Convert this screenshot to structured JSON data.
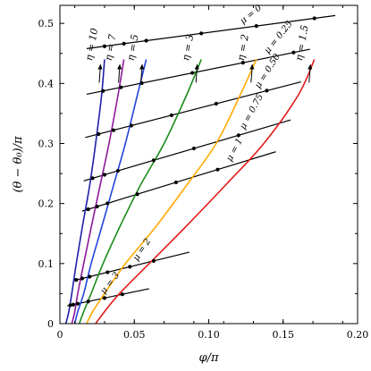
{
  "chart_data": {
    "type": "line",
    "xlabel": "φ/π",
    "ylabel": "(θ − θ₀)/π",
    "xlim": [
      0,
      0.2
    ],
    "ylim": [
      0,
      0.53
    ],
    "xticks": [
      {
        "value": 0,
        "label": "0"
      },
      {
        "value": 0.05,
        "label": "0.05"
      },
      {
        "value": 0.1,
        "label": "0.10"
      },
      {
        "value": 0.15,
        "label": "0.15"
      },
      {
        "value": 0.2,
        "label": "0.20"
      }
    ],
    "yticks": [
      {
        "value": 0,
        "label": "0"
      },
      {
        "value": 0.1,
        "label": "0.1"
      },
      {
        "value": 0.2,
        "label": "0.2"
      },
      {
        "value": 0.3,
        "label": "0.3"
      },
      {
        "value": 0.4,
        "label": "0.4"
      },
      {
        "value": 0.5,
        "label": "0.5"
      }
    ],
    "grid": false,
    "eta_curves": [
      {
        "label": "η = 10",
        "color": "#1f1fa8",
        "x": [
          0.004,
          0.006,
          0.008,
          0.011,
          0.015,
          0.02,
          0.024,
          0.028,
          0.03
        ]
      },
      {
        "label": "η = 7",
        "color": "#8b1a9a",
        "x": [
          0.008,
          0.01,
          0.012,
          0.016,
          0.021,
          0.027,
          0.033,
          0.039,
          0.043
        ]
      },
      {
        "label": "η = 5",
        "color": "#2244dd",
        "x": [
          0.01,
          0.012,
          0.016,
          0.021,
          0.028,
          0.036,
          0.044,
          0.052,
          0.058
        ]
      },
      {
        "label": "η = 3",
        "color": "#1a8c1a",
        "x": [
          0.013,
          0.016,
          0.021,
          0.029,
          0.04,
          0.054,
          0.07,
          0.085,
          0.095
        ]
      },
      {
        "label": "η = 2",
        "color": "#ffaa00",
        "x": [
          0.018,
          0.022,
          0.03,
          0.044,
          0.064,
          0.085,
          0.105,
          0.121,
          0.132
        ]
      },
      {
        "label": "η = 1.5",
        "color": "#e31a1a",
        "x": [
          0.024,
          0.03,
          0.04,
          0.06,
          0.084,
          0.111,
          0.137,
          0.16,
          0.171
        ]
      }
    ],
    "eta_y": [
      0.0,
      0.02,
      0.05,
      0.1,
      0.16,
      0.23,
      0.3,
      0.38,
      0.44
    ],
    "mu_lines": [
      {
        "label": "μ = 0",
        "y0": 0.452,
        "slope": 0.33,
        "x_range": [
          0.018,
          0.185
        ],
        "label_x": 0.123,
        "dots": [
          0.03,
          0.043,
          0.058,
          0.095,
          0.132,
          0.171
        ]
      },
      {
        "label": "μ = 0.25",
        "y0": 0.373,
        "slope": 0.5,
        "x_range": [
          0.018,
          0.168
        ],
        "label_x": 0.14,
        "dots": [
          0.029,
          0.041,
          0.055,
          0.089,
          0.123,
          0.157
        ]
      },
      {
        "label": "μ = 0.50",
        "y0": 0.299,
        "slope": 0.64,
        "x_range": [
          0.017,
          0.162
        ],
        "label_x": 0.134,
        "dots": [
          0.026,
          0.036,
          0.048,
          0.075,
          0.105,
          0.139
        ]
      },
      {
        "label": "μ = 0.75",
        "y0": 0.226,
        "slope": 0.73,
        "x_range": [
          0.016,
          0.155
        ],
        "label_x": 0.124,
        "dots": [
          0.022,
          0.03,
          0.039,
          0.063,
          0.09,
          0.12
        ]
      },
      {
        "label": "μ = 1",
        "y0": 0.176,
        "slope": 0.76,
        "x_range": [
          0.015,
          0.145
        ],
        "label_x": 0.115,
        "dots": [
          0.019,
          0.025,
          0.032,
          0.052,
          0.078,
          0.106
        ]
      },
      {
        "label": "μ = 2",
        "y0": 0.066,
        "slope": 0.61,
        "x_range": [
          0.009,
          0.087
        ],
        "label_x": 0.052,
        "dots": [
          0.011,
          0.015,
          0.02,
          0.032,
          0.047,
          0.063
        ]
      },
      {
        "label": "μ = 3",
        "y0": 0.027,
        "slope": 0.52,
        "x_range": [
          0.005,
          0.06
        ],
        "label_x": 0.03,
        "dots": [
          0.007,
          0.009,
          0.012,
          0.019,
          0.03,
          0.042
        ]
      }
    ]
  }
}
